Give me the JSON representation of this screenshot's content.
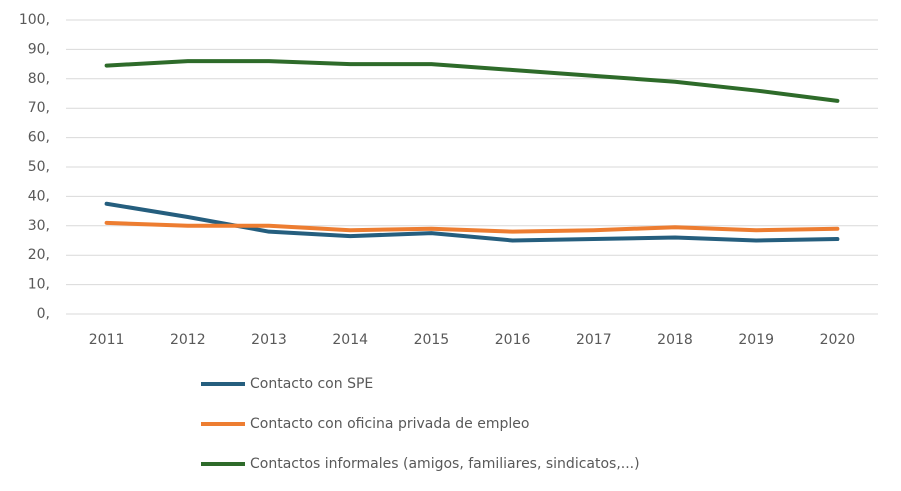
{
  "chart_data": {
    "type": "line",
    "categories": [
      "2011",
      "2012",
      "2013",
      "2014",
      "2015",
      "2016",
      "2017",
      "2018",
      "2019",
      "2020"
    ],
    "series": [
      {
        "name": "Contacto con SPE",
        "color": "#255e7e",
        "values": [
          37.5,
          33,
          28,
          26.5,
          27.5,
          25,
          25.5,
          26,
          25,
          25.5
        ]
      },
      {
        "name": "Contacto con oficina privada de empleo",
        "color": "#ed7d31",
        "values": [
          31,
          30,
          30,
          28.5,
          29,
          28,
          28.5,
          29.5,
          28.5,
          29
        ]
      },
      {
        "name": "Contactos informales (amigos, familiares, sindicatos,...)",
        "color": "#2e6b2a",
        "values": [
          84.5,
          86,
          86,
          85,
          85,
          83,
          81,
          79,
          76,
          72.5
        ]
      }
    ],
    "ylim": [
      0,
      100
    ],
    "yticks": [
      {
        "value": 0,
        "label": "0,"
      },
      {
        "value": 10,
        "label": "10,"
      },
      {
        "value": 20,
        "label": "20,"
      },
      {
        "value": 30,
        "label": "30,"
      },
      {
        "value": 40,
        "label": "40,"
      },
      {
        "value": 50,
        "label": "50,"
      },
      {
        "value": 60,
        "label": "60,"
      },
      {
        "value": 70,
        "label": "70,"
      },
      {
        "value": 80,
        "label": "80,"
      },
      {
        "value": 90,
        "label": "90,"
      },
      {
        "value": 100,
        "label": "100,"
      }
    ],
    "grid": true,
    "legend": "bottom"
  }
}
